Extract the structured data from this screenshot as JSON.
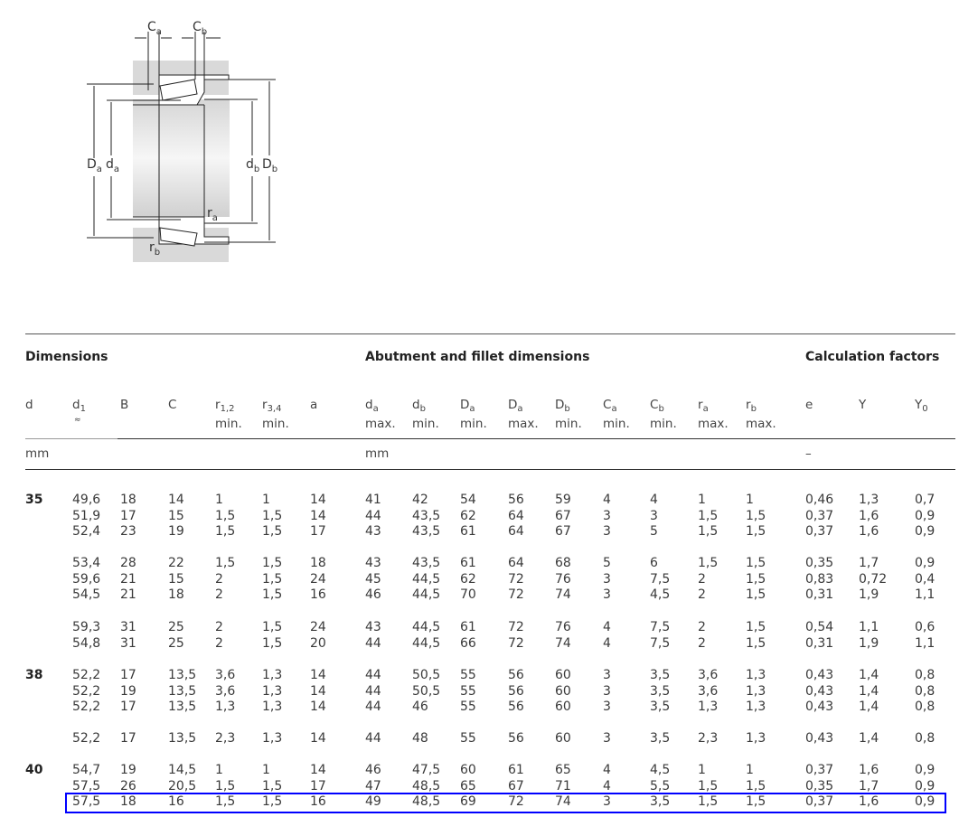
{
  "diagram": {
    "labels": {
      "Ca": {
        "main": "C",
        "sub": "a"
      },
      "Cb": {
        "main": "C",
        "sub": "b"
      },
      "Da": {
        "main": "D",
        "sub": "a"
      },
      "da": {
        "main": "d",
        "sub": "a"
      },
      "db": {
        "main": "d",
        "sub": "b"
      },
      "Db": {
        "main": "D",
        "sub": "b"
      },
      "ra": {
        "main": "r",
        "sub": "a"
      },
      "rb": {
        "main": "r",
        "sub": "b"
      }
    }
  },
  "sections": {
    "dimensions": "Dimensions",
    "abutment": "Abutment and fillet dimensions",
    "calc": "Calculation factors"
  },
  "columns": [
    {
      "sym": "d",
      "sub": "",
      "qual": ""
    },
    {
      "sym": "d",
      "sub": "1",
      "qual": "",
      "approx": "≈"
    },
    {
      "sym": "B",
      "sub": "",
      "qual": ""
    },
    {
      "sym": "C",
      "sub": "",
      "qual": ""
    },
    {
      "sym": "r",
      "sub": "1,2",
      "qual": "min."
    },
    {
      "sym": "r",
      "sub": "3,4",
      "qual": "min."
    },
    {
      "sym": "a",
      "sub": "",
      "qual": ""
    },
    {
      "sym": "d",
      "sub": "a",
      "qual": "max."
    },
    {
      "sym": "d",
      "sub": "b",
      "qual": "min."
    },
    {
      "sym": "D",
      "sub": "a",
      "qual": "min."
    },
    {
      "sym": "D",
      "sub": "a",
      "qual": "max."
    },
    {
      "sym": "D",
      "sub": "b",
      "qual": "min."
    },
    {
      "sym": "C",
      "sub": "a",
      "qual": "min."
    },
    {
      "sym": "C",
      "sub": "b",
      "qual": "min."
    },
    {
      "sym": "r",
      "sub": "a",
      "qual": "max."
    },
    {
      "sym": "r",
      "sub": "b",
      "qual": "max."
    },
    {
      "sym": "e",
      "sub": "",
      "qual": ""
    },
    {
      "sym": "Y",
      "sub": "",
      "qual": ""
    },
    {
      "sym": "Y",
      "sub": "0",
      "qual": ""
    }
  ],
  "units": {
    "dimensions": "mm",
    "abutment": "mm",
    "calc": "–"
  },
  "groups": [
    {
      "d": "35",
      "rows": [
        [
          "49,6",
          "18",
          "14",
          "1",
          "1",
          "14",
          "41",
          "42",
          "54",
          "56",
          "59",
          "4",
          "4",
          "1",
          "1",
          "0,46",
          "1,3",
          "0,7"
        ],
        [
          "51,9",
          "17",
          "15",
          "1,5",
          "1,5",
          "14",
          "44",
          "43,5",
          "62",
          "64",
          "67",
          "3",
          "3",
          "1,5",
          "1,5",
          "0,37",
          "1,6",
          "0,9"
        ],
        [
          "52,4",
          "23",
          "19",
          "1,5",
          "1,5",
          "17",
          "43",
          "43,5",
          "61",
          "64",
          "67",
          "3",
          "5",
          "1,5",
          "1,5",
          "0,37",
          "1,6",
          "0,9"
        ]
      ]
    },
    {
      "d": "",
      "rows": [
        [
          "53,4",
          "28",
          "22",
          "1,5",
          "1,5",
          "18",
          "43",
          "43,5",
          "61",
          "64",
          "68",
          "5",
          "6",
          "1,5",
          "1,5",
          "0,35",
          "1,7",
          "0,9"
        ],
        [
          "59,6",
          "21",
          "15",
          "2",
          "1,5",
          "24",
          "45",
          "44,5",
          "62",
          "72",
          "76",
          "3",
          "7,5",
          "2",
          "1,5",
          "0,83",
          "0,72",
          "0,4"
        ],
        [
          "54,5",
          "21",
          "18",
          "2",
          "1,5",
          "16",
          "46",
          "44,5",
          "70",
          "72",
          "74",
          "3",
          "4,5",
          "2",
          "1,5",
          "0,31",
          "1,9",
          "1,1"
        ]
      ]
    },
    {
      "d": "",
      "rows": [
        [
          "59,3",
          "31",
          "25",
          "2",
          "1,5",
          "24",
          "43",
          "44,5",
          "61",
          "72",
          "76",
          "4",
          "7,5",
          "2",
          "1,5",
          "0,54",
          "1,1",
          "0,6"
        ],
        [
          "54,8",
          "31",
          "25",
          "2",
          "1,5",
          "20",
          "44",
          "44,5",
          "66",
          "72",
          "74",
          "4",
          "7,5",
          "2",
          "1,5",
          "0,31",
          "1,9",
          "1,1"
        ]
      ]
    },
    {
      "d": "38",
      "rows": [
        [
          "52,2",
          "17",
          "13,5",
          "3,6",
          "1,3",
          "14",
          "44",
          "50,5",
          "55",
          "56",
          "60",
          "3",
          "3,5",
          "3,6",
          "1,3",
          "0,43",
          "1,4",
          "0,8"
        ],
        [
          "52,2",
          "19",
          "13,5",
          "3,6",
          "1,3",
          "14",
          "44",
          "50,5",
          "55",
          "56",
          "60",
          "3",
          "3,5",
          "3,6",
          "1,3",
          "0,43",
          "1,4",
          "0,8"
        ],
        [
          "52,2",
          "17",
          "13,5",
          "1,3",
          "1,3",
          "14",
          "44",
          "46",
          "55",
          "56",
          "60",
          "3",
          "3,5",
          "1,3",
          "1,3",
          "0,43",
          "1,4",
          "0,8"
        ]
      ]
    },
    {
      "d": "",
      "rows": [
        [
          "52,2",
          "17",
          "13,5",
          "2,3",
          "1,3",
          "14",
          "44",
          "48",
          "55",
          "56",
          "60",
          "3",
          "3,5",
          "2,3",
          "1,3",
          "0,43",
          "1,4",
          "0,8"
        ]
      ]
    },
    {
      "d": "40",
      "rows": [
        [
          "54,7",
          "19",
          "14,5",
          "1",
          "1",
          "14",
          "46",
          "47,5",
          "60",
          "61",
          "65",
          "4",
          "4,5",
          "1",
          "1",
          "0,37",
          "1,6",
          "0,9"
        ],
        [
          "57,5",
          "26",
          "20,5",
          "1,5",
          "1,5",
          "17",
          "47",
          "48,5",
          "65",
          "67",
          "71",
          "4",
          "5,5",
          "1,5",
          "1,5",
          "0,35",
          "1,7",
          "0,9"
        ],
        [
          "57,5",
          "18",
          "16",
          "1,5",
          "1,5",
          "16",
          "49",
          "48,5",
          "69",
          "72",
          "74",
          "3",
          "3,5",
          "1,5",
          "1,5",
          "0,37",
          "1,6",
          "0,9"
        ]
      ]
    }
  ],
  "highlight": {
    "group": 5,
    "row": 2,
    "color": "#0000ff"
  }
}
